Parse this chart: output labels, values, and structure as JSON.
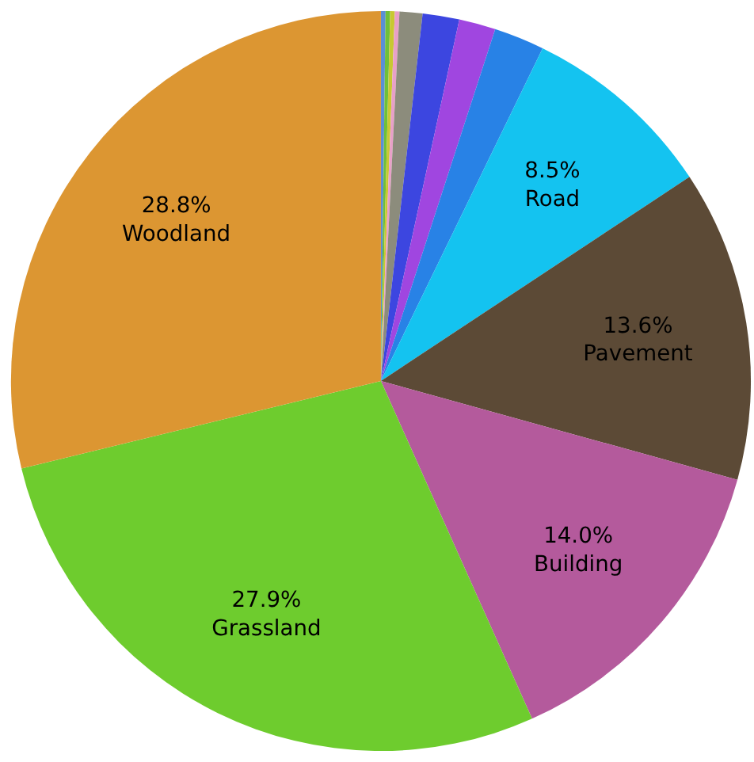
{
  "chart_data": {
    "type": "pie",
    "categories": [
      null,
      null,
      null,
      null,
      null,
      null,
      null,
      null,
      "Road",
      "Pavement",
      "Building",
      "Grassland",
      "Woodland"
    ],
    "values": [
      0.2,
      0.2,
      0.2,
      0.2,
      1.0,
      1.6,
      1.6,
      2.2,
      8.5,
      13.6,
      14.0,
      27.9,
      28.8
    ],
    "value_labels": [
      null,
      null,
      null,
      null,
      null,
      null,
      null,
      null,
      "8.5%",
      "13.6%",
      "14.0%",
      "27.9%",
      "28.8%"
    ],
    "colors": [
      "#5b8fd6",
      "#6fbf3a",
      "#c8c832",
      "#e8a0c8",
      "#8c8c7c",
      "#3c46e0",
      "#a046e0",
      "#2882e6",
      "#14c3f0",
      "#5c4a36",
      "#b45a9c",
      "#6ecc2e",
      "#dc9632"
    ]
  }
}
